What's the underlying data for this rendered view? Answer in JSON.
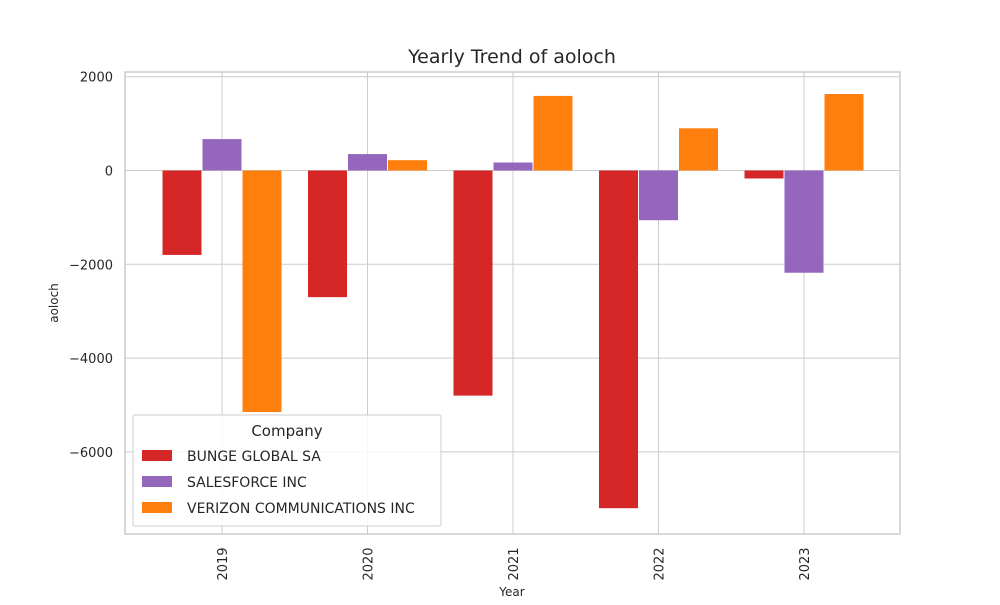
{
  "chart_data": {
    "type": "bar",
    "title": "Yearly Trend of aoloch",
    "xlabel": "Year",
    "ylabel": "aoloch",
    "categories": [
      "2019",
      "2020",
      "2021",
      "2022",
      "2023"
    ],
    "series": [
      {
        "name": "BUNGE GLOBAL SA",
        "color": "#d62728",
        "values": [
          -1800,
          -2700,
          -4800,
          -7200,
          -170
        ]
      },
      {
        "name": "SALESFORCE INC",
        "color": "#9467bd",
        "values": [
          670,
          350,
          170,
          -1060,
          -2180
        ]
      },
      {
        "name": "VERIZON COMMUNICATIONS INC",
        "color": "#ff7f0e",
        "values": [
          -5150,
          220,
          1590,
          900,
          1630
        ]
      }
    ],
    "ylim": [
      -7750,
      2100
    ],
    "yticks": [
      2000,
      0,
      -2000,
      -4000,
      -6000
    ],
    "ytick_labels": [
      "2000",
      "0",
      "−2000",
      "−4000",
      "−6000"
    ],
    "grid": true,
    "legend": {
      "title": "Company",
      "placement": "lower-left"
    }
  }
}
